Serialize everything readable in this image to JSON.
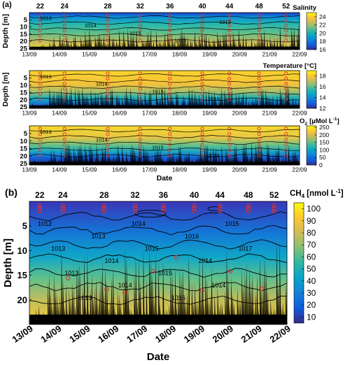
{
  "colors": {
    "black": "#000000",
    "marker": "#e0302a"
  },
  "chart_data": [
    {
      "type": "heatmap",
      "panel_label": "(a)",
      "colorbar_label": "Salinity",
      "colorbar_ticks": [
        "16",
        "18",
        "20",
        "22",
        "24"
      ],
      "colormap": "parula",
      "color_value_range": [
        16,
        25
      ],
      "title": "",
      "xlabel": "",
      "ylabel": "Depth [m]",
      "top_labels": [
        "22",
        "24",
        "28",
        "32",
        "36",
        "40",
        "44",
        "48",
        "52"
      ],
      "x_dates": [
        "13/09",
        "14/09",
        "15/09",
        "16/09",
        "17/09",
        "18/09",
        "19/09",
        "20/09",
        "21/09",
        "22/09"
      ],
      "y_ticks": [
        "5",
        "10",
        "15",
        "20",
        "25"
      ],
      "ylim": [
        0,
        26
      ],
      "y_reversed": true,
      "contour_labels": [
        "1013",
        "1014",
        "1015",
        "1016",
        "1013"
      ]
    },
    {
      "type": "heatmap",
      "panel_label": "",
      "colorbar_label": "Temperature [°C]",
      "colorbar_ticks": [
        "12",
        "14",
        "16",
        "18"
      ],
      "colormap": "parula",
      "color_value_range": [
        12,
        19
      ],
      "title": "",
      "xlabel": "",
      "ylabel": "Depth [m]",
      "x_dates": [
        "13/09",
        "14/09",
        "15/09",
        "16/09",
        "17/09",
        "18/09",
        "19/09",
        "20/09",
        "21/09",
        "22/09"
      ],
      "y_ticks": [
        "5",
        "10",
        "15",
        "20",
        "25"
      ],
      "ylim": [
        0,
        26
      ],
      "y_reversed": true,
      "contour_labels": [
        "1013",
        "1014",
        "1015",
        "1016"
      ]
    },
    {
      "type": "heatmap",
      "panel_label": "",
      "colorbar_label_prefix": "O",
      "colorbar_label_sub": "2",
      "colorbar_label_unit": "[µMol L",
      "colorbar_label_sup": "-1",
      "colorbar_label_end": "]",
      "colorbar_ticks": [
        "0",
        "50",
        "100",
        "150",
        "200",
        "250"
      ],
      "colormap": "parula",
      "color_value_range": [
        0,
        260
      ],
      "title": "",
      "xlabel": "Date",
      "ylabel": "",
      "x_dates": [
        "13/09",
        "14/09",
        "15/09",
        "16/09",
        "17/09",
        "18/09",
        "19/09",
        "20/09",
        "21/09",
        "22/09"
      ],
      "y_ticks": [
        "5",
        "10",
        "15",
        "20",
        "25"
      ],
      "ylim": [
        0,
        26
      ],
      "y_reversed": true,
      "contour_labels": [
        "1013",
        "1014",
        "1015",
        "1016"
      ]
    },
    {
      "type": "heatmap",
      "panel_label": "(b)",
      "colorbar_label_prefix": "CH",
      "colorbar_label_sub": "4",
      "colorbar_label_unit": "[nmol L",
      "colorbar_label_sup": "-1",
      "colorbar_label_end": "]",
      "colorbar_ticks": [
        "10",
        "20",
        "30",
        "40",
        "50",
        "60",
        "70",
        "80",
        "90",
        "100"
      ],
      "colormap": "parula",
      "color_value_range": [
        5,
        105
      ],
      "title": "",
      "xlabel": "Date",
      "ylabel": "Depth [m]",
      "top_labels": [
        "22",
        "24",
        "28",
        "32",
        "36",
        "40",
        "44",
        "48",
        "52"
      ],
      "x_dates": [
        "13/09",
        "14/09",
        "15/09",
        "16/09",
        "17/09",
        "18/09",
        "19/09",
        "20/09",
        "21/09",
        "22/09"
      ],
      "y_ticks": [
        "5",
        "10",
        "15",
        "20"
      ],
      "ylim": [
        0,
        25
      ],
      "y_reversed": true,
      "contour_labels": [
        "1012",
        "1013",
        "1013",
        "1013",
        "1013",
        "1014",
        "1014",
        "1014",
        "1015",
        "1015",
        "1016",
        "1016",
        "1014",
        "1014",
        "1015",
        "1017"
      ]
    }
  ]
}
